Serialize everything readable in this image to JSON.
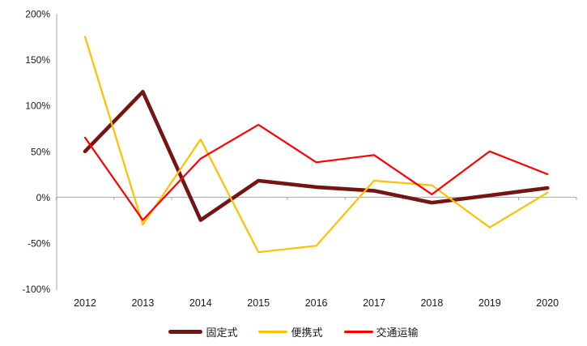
{
  "chart_data": {
    "type": "line",
    "title": "",
    "categories": [
      "2012",
      "2013",
      "2014",
      "2015",
      "2016",
      "2017",
      "2018",
      "2019",
      "2020"
    ],
    "series": [
      {
        "name": "固定式",
        "values": [
          50,
          115,
          -25,
          18,
          11,
          7,
          -6,
          2,
          10
        ],
        "color": "#741414",
        "stroke_width": 4.6
      },
      {
        "name": "便携式",
        "values": [
          175,
          -30,
          63,
          -60,
          -53,
          18,
          13,
          -33,
          5
        ],
        "color": "#FFC000",
        "stroke_width": 2.2
      },
      {
        "name": "交通运输",
        "values": [
          65,
          -25,
          42,
          79,
          38,
          46,
          3,
          50,
          25
        ],
        "color": "#FF0000",
        "stroke_width": 2.2
      }
    ],
    "xlabel": "",
    "ylabel": "",
    "ylim": [
      -100,
      200
    ],
    "ytick_values": [
      200,
      150,
      100,
      50,
      0,
      -50,
      -100
    ],
    "ytick_labels": [
      "200%",
      "150%",
      "100%",
      "50%",
      "0%",
      "-50%",
      "-100%"
    ],
    "grid": "zero-axis-line-only",
    "legend_position": "bottom"
  },
  "colors": {
    "axis_line": "#A6A6A6",
    "zero_line": "#A6A6A6",
    "tick_mark": "#A6A6A6",
    "label_text": "#1a1a1a",
    "background": "#ffffff"
  },
  "legend": {
    "items": [
      {
        "label": "固定式",
        "color": "#741414",
        "thick": true
      },
      {
        "label": "便携式",
        "color": "#FFC000",
        "thick": false
      },
      {
        "label": "交通运输",
        "color": "#FF0000",
        "thick": false
      }
    ]
  }
}
